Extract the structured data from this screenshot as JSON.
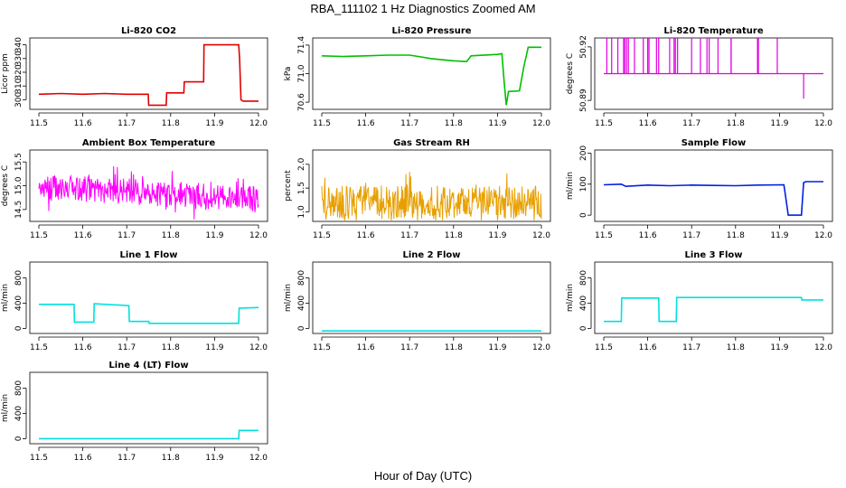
{
  "figure": {
    "title": "RBA_111102  1 Hz Diagnostics Zoomed AM",
    "xlabel": "Hour of Day (UTC)"
  },
  "chart_data": [
    {
      "type": "line",
      "title": "Li-820 CO2",
      "ylabel": "Licor ppm",
      "color": "#e00000",
      "xlim": [
        11.5,
        12.0
      ],
      "ylim": [
        293,
        345
      ],
      "xticks": [
        "11.5",
        "11.6",
        "11.7",
        "11.8",
        "11.9",
        "12.0"
      ],
      "yticks": [
        300,
        310,
        320,
        330,
        340
      ],
      "series": [
        {
          "x": [
            11.5,
            11.55,
            11.6,
            11.65,
            11.7,
            11.749,
            11.75,
            11.79,
            11.791,
            11.83,
            11.831,
            11.875,
            11.876,
            11.9,
            11.955,
            11.957,
            11.96,
            11.965,
            12.0
          ],
          "values": [
            304,
            304.5,
            304,
            304.5,
            304,
            304,
            296,
            296,
            305,
            305,
            313,
            313,
            340,
            340,
            340,
            330,
            300,
            299,
            299
          ]
        }
      ]
    },
    {
      "type": "line",
      "title": "Li-820 Pressure",
      "ylabel": "kPa",
      "color": "#00c000",
      "xlim": [
        11.5,
        12.0
      ],
      "ylim": [
        70.5,
        71.5
      ],
      "xticks": [
        "11.5",
        "11.6",
        "11.7",
        "11.8",
        "11.9",
        "12.0"
      ],
      "yticks": [
        "70.6",
        "71.0",
        "71.4"
      ],
      "series": [
        {
          "x": [
            11.5,
            11.55,
            11.6,
            11.65,
            11.7,
            11.72,
            11.75,
            11.8,
            11.83,
            11.84,
            11.9,
            11.91,
            11.915,
            11.92,
            11.925,
            11.95,
            11.96,
            11.97,
            12.0
          ],
          "values": [
            71.25,
            71.24,
            71.25,
            71.26,
            71.26,
            71.24,
            71.21,
            71.18,
            71.17,
            71.25,
            71.27,
            71.28,
            70.9,
            70.56,
            70.75,
            70.76,
            71.1,
            71.37,
            71.37
          ]
        }
      ]
    },
    {
      "type": "line",
      "title": "Li-820 Temperature",
      "ylabel": "degrees C",
      "color": "#e000e0",
      "xlim": [
        11.5,
        12.0
      ],
      "ylim": [
        50.885,
        50.925
      ],
      "xticks": [
        "11.5",
        "11.6",
        "11.7",
        "11.8",
        "11.9",
        "12.0"
      ],
      "yticks": [
        "50.89",
        "50.92"
      ],
      "baseline": 50.905,
      "spikes_up": [
        11.507,
        11.518,
        11.532,
        11.545,
        11.548,
        11.552,
        11.556,
        11.57,
        11.59,
        11.6,
        11.603,
        11.62,
        11.625,
        11.65,
        11.66,
        11.663,
        11.668,
        11.7,
        11.72,
        11.735,
        11.74,
        11.76,
        11.79,
        11.79,
        11.85,
        11.852,
        11.895
      ],
      "spikes_down": [
        11.955
      ],
      "spike_top": 50.925,
      "spike_bottom": 50.891
    },
    {
      "type": "line",
      "title": "Ambient Box Temperature",
      "ylabel": "degrees C",
      "color": "#ff00ff",
      "xlim": [
        11.5,
        12.0
      ],
      "ylim": [
        14.25,
        15.75
      ],
      "xticks": [
        "11.5",
        "11.6",
        "11.7",
        "11.8",
        "11.9",
        "12.0"
      ],
      "yticks": [
        "14.5",
        "15.0",
        "15.5"
      ],
      "noise": {
        "mean_start": 15.0,
        "mean_end": 14.7,
        "spread": 0.55
      }
    },
    {
      "type": "line",
      "title": "Gas Stream RH",
      "ylabel": "percent",
      "color": "#e8a000",
      "xlim": [
        11.5,
        12.0
      ],
      "ylim": [
        0.8,
        2.3
      ],
      "xticks": [
        "11.5",
        "11.6",
        "11.7",
        "11.8",
        "11.9",
        "12.0"
      ],
      "yticks": [
        "1.0",
        "1.5",
        "2.0"
      ],
      "noise": {
        "mean_start": 1.2,
        "mean_end": 1.2,
        "spread": 0.7
      }
    },
    {
      "type": "line",
      "title": "Sample Flow",
      "ylabel": "ml/min",
      "color": "#0020e0",
      "xlim": [
        11.5,
        12.0
      ],
      "ylim": [
        -20,
        210
      ],
      "xticks": [
        "11.5",
        "11.6",
        "11.7",
        "11.8",
        "11.9",
        "12.0"
      ],
      "yticks": [
        0,
        100,
        200
      ],
      "series": [
        {
          "x": [
            11.5,
            11.54,
            11.55,
            11.6,
            11.65,
            11.7,
            11.75,
            11.8,
            11.85,
            11.91,
            11.915,
            11.92,
            11.95,
            11.955,
            11.96,
            12.0
          ],
          "values": [
            98,
            100,
            93,
            97,
            95,
            97,
            96,
            95,
            97,
            98,
            50,
            0,
            0,
            105,
            108,
            108
          ]
        }
      ]
    },
    {
      "type": "line",
      "title": "Line 1 Flow",
      "ylabel": "ml/min",
      "color": "#00e0e0",
      "xlim": [
        11.5,
        12.0
      ],
      "ylim": [
        -80,
        1050
      ],
      "xticks": [
        "11.5",
        "11.6",
        "11.7",
        "11.8",
        "11.9",
        "12.0"
      ],
      "yticks": [
        0,
        400,
        800
      ],
      "series": [
        {
          "x": [
            11.5,
            11.58,
            11.581,
            11.625,
            11.626,
            11.705,
            11.706,
            11.75,
            11.751,
            11.955,
            11.956,
            12.0
          ],
          "values": [
            380,
            380,
            100,
            100,
            390,
            360,
            110,
            110,
            80,
            80,
            320,
            330
          ]
        }
      ]
    },
    {
      "type": "line",
      "title": "Line 2 Flow",
      "ylabel": "ml/min",
      "color": "#00e0e0",
      "xlim": [
        11.5,
        12.0
      ],
      "ylim": [
        -80,
        1050
      ],
      "xticks": [
        "11.5",
        "11.6",
        "11.7",
        "11.8",
        "11.9",
        "12.0"
      ],
      "yticks": [
        0,
        400,
        800
      ],
      "series": [
        {
          "x": [
            11.5,
            12.0
          ],
          "values": [
            -40,
            -40
          ]
        }
      ]
    },
    {
      "type": "line",
      "title": "Line 3 Flow",
      "ylabel": "ml/min",
      "color": "#00e0e0",
      "xlim": [
        11.5,
        12.0
      ],
      "ylim": [
        -80,
        1050
      ],
      "xticks": [
        "11.5",
        "11.6",
        "11.7",
        "11.8",
        "11.9",
        "12.0"
      ],
      "yticks": [
        0,
        400,
        800
      ],
      "series": [
        {
          "x": [
            11.5,
            11.54,
            11.541,
            11.625,
            11.626,
            11.665,
            11.666,
            11.95,
            11.951,
            12.0
          ],
          "values": [
            110,
            110,
            480,
            480,
            110,
            110,
            490,
            490,
            450,
            450
          ]
        }
      ]
    },
    {
      "type": "line",
      "title": "Line 4 (LT) Flow",
      "ylabel": "ml/min",
      "color": "#00e0e0",
      "xlim": [
        11.5,
        12.0
      ],
      "ylim": [
        -80,
        1050
      ],
      "xticks": [
        "11.5",
        "11.6",
        "11.7",
        "11.8",
        "11.9",
        "12.0"
      ],
      "yticks": [
        0,
        400,
        800
      ],
      "series": [
        {
          "x": [
            11.5,
            11.955,
            11.956,
            12.0
          ],
          "values": [
            0,
            0,
            130,
            130
          ]
        }
      ]
    }
  ]
}
